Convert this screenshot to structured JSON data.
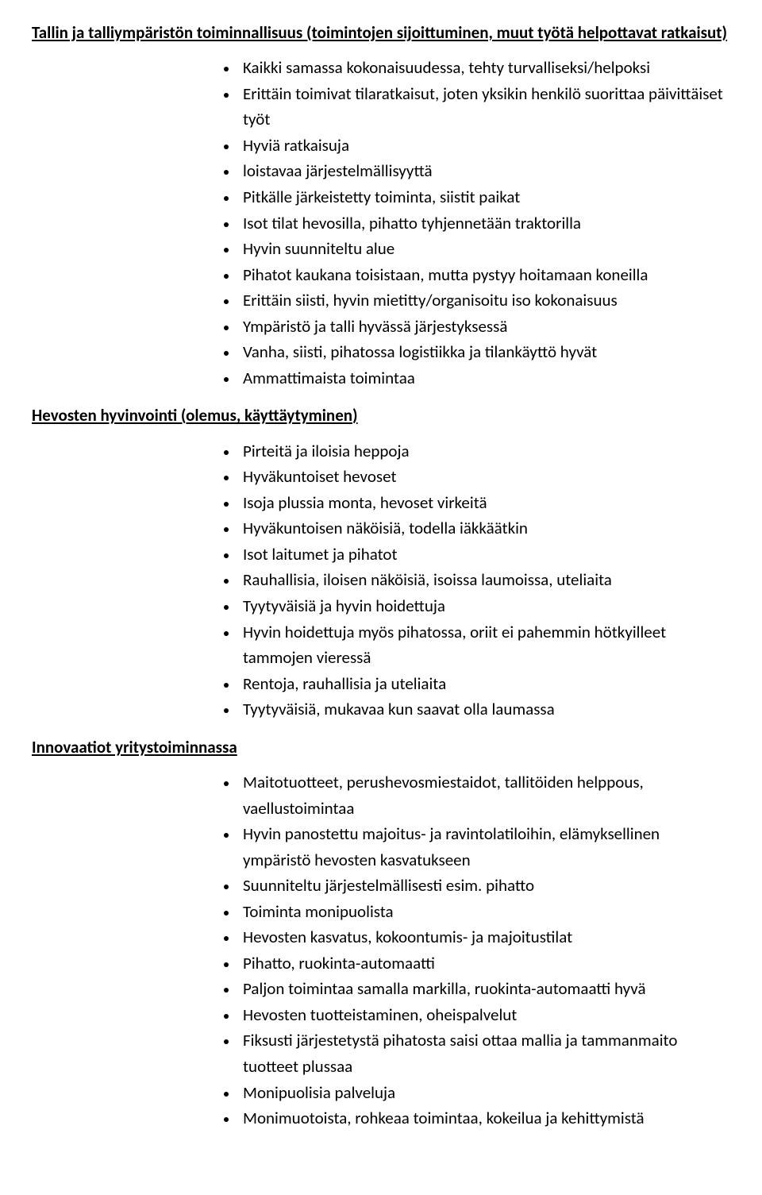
{
  "headings": {
    "h1": "Tallin ja talliympäristön toiminnallisuus (toimintojen sijoittuminen, muut työtä helpottavat ratkaisut)",
    "h2": "Hevosten hyvinvointi (olemus,  käyttäytyminen)",
    "h3": "Innovaatiot yritystoiminnassa"
  },
  "list1": [
    "Kaikki samassa kokonaisuudessa, tehty turvalliseksi/helpoksi",
    "Erittäin toimivat tilaratkaisut, joten yksikin henkilö suorittaa päivittäiset työt",
    "Hyviä ratkaisuja",
    "loistavaa järjestelmällisyyttä",
    "Pitkälle järkeistetty toiminta, siistit paikat",
    "Isot tilat hevosilla, pihatto tyhjennetään traktorilla",
    "Hyvin suunniteltu alue",
    "Pihatot kaukana toisistaan, mutta pystyy hoitamaan koneilla",
    "Erittäin siisti, hyvin mietitty/organisoitu iso kokonaisuus",
    "Ympäristö ja talli hyvässä järjestyksessä",
    "Vanha, siisti, pihatossa logistiikka ja tilankäyttö hyvät",
    "Ammattimaista toimintaa"
  ],
  "list2": [
    "Pirteitä ja iloisia heppoja",
    "Hyväkuntoiset hevoset",
    "Isoja plussia monta, hevoset virkeitä",
    "Hyväkuntoisen näköisiä, todella iäkkäätkin",
    "Isot laitumet ja pihatot",
    "Rauhallisia, iloisen näköisiä, isoissa laumoissa, uteliaita",
    "Tyytyväisiä ja hyvin hoidettuja",
    "Hyvin hoidettuja myös pihatossa, oriit ei pahemmin hötkyilleet tammojen vieressä",
    "Rentoja, rauhallisia ja uteliaita",
    "Tyytyväisiä, mukavaa kun saavat olla laumassa"
  ],
  "list3": [
    "Maitotuotteet, perushevosmiestaidot, tallitöiden helppous, vaellustoimintaa",
    "Hyvin panostettu majoitus- ja ravintolatiloihin, elämyksellinen ympäristö hevosten kasvatukseen",
    "Suunniteltu järjestelmällisesti esim. pihatto",
    "Toiminta monipuolista",
    "Hevosten kasvatus, kokoontumis- ja majoitustilat",
    "Pihatto, ruokinta-automaatti",
    "Paljon toimintaa samalla markilla, ruokinta-automaatti hyvä",
    "Hevosten tuotteistaminen, oheispalvelut",
    "Fiksusti järjestetystä pihatosta saisi ottaa mallia ja tammanmaito tuotteet plussaa",
    "Monipuolisia palveluja",
    "Monimuotoista, rohkeaa toimintaa, kokeilua ja kehittymistä"
  ]
}
